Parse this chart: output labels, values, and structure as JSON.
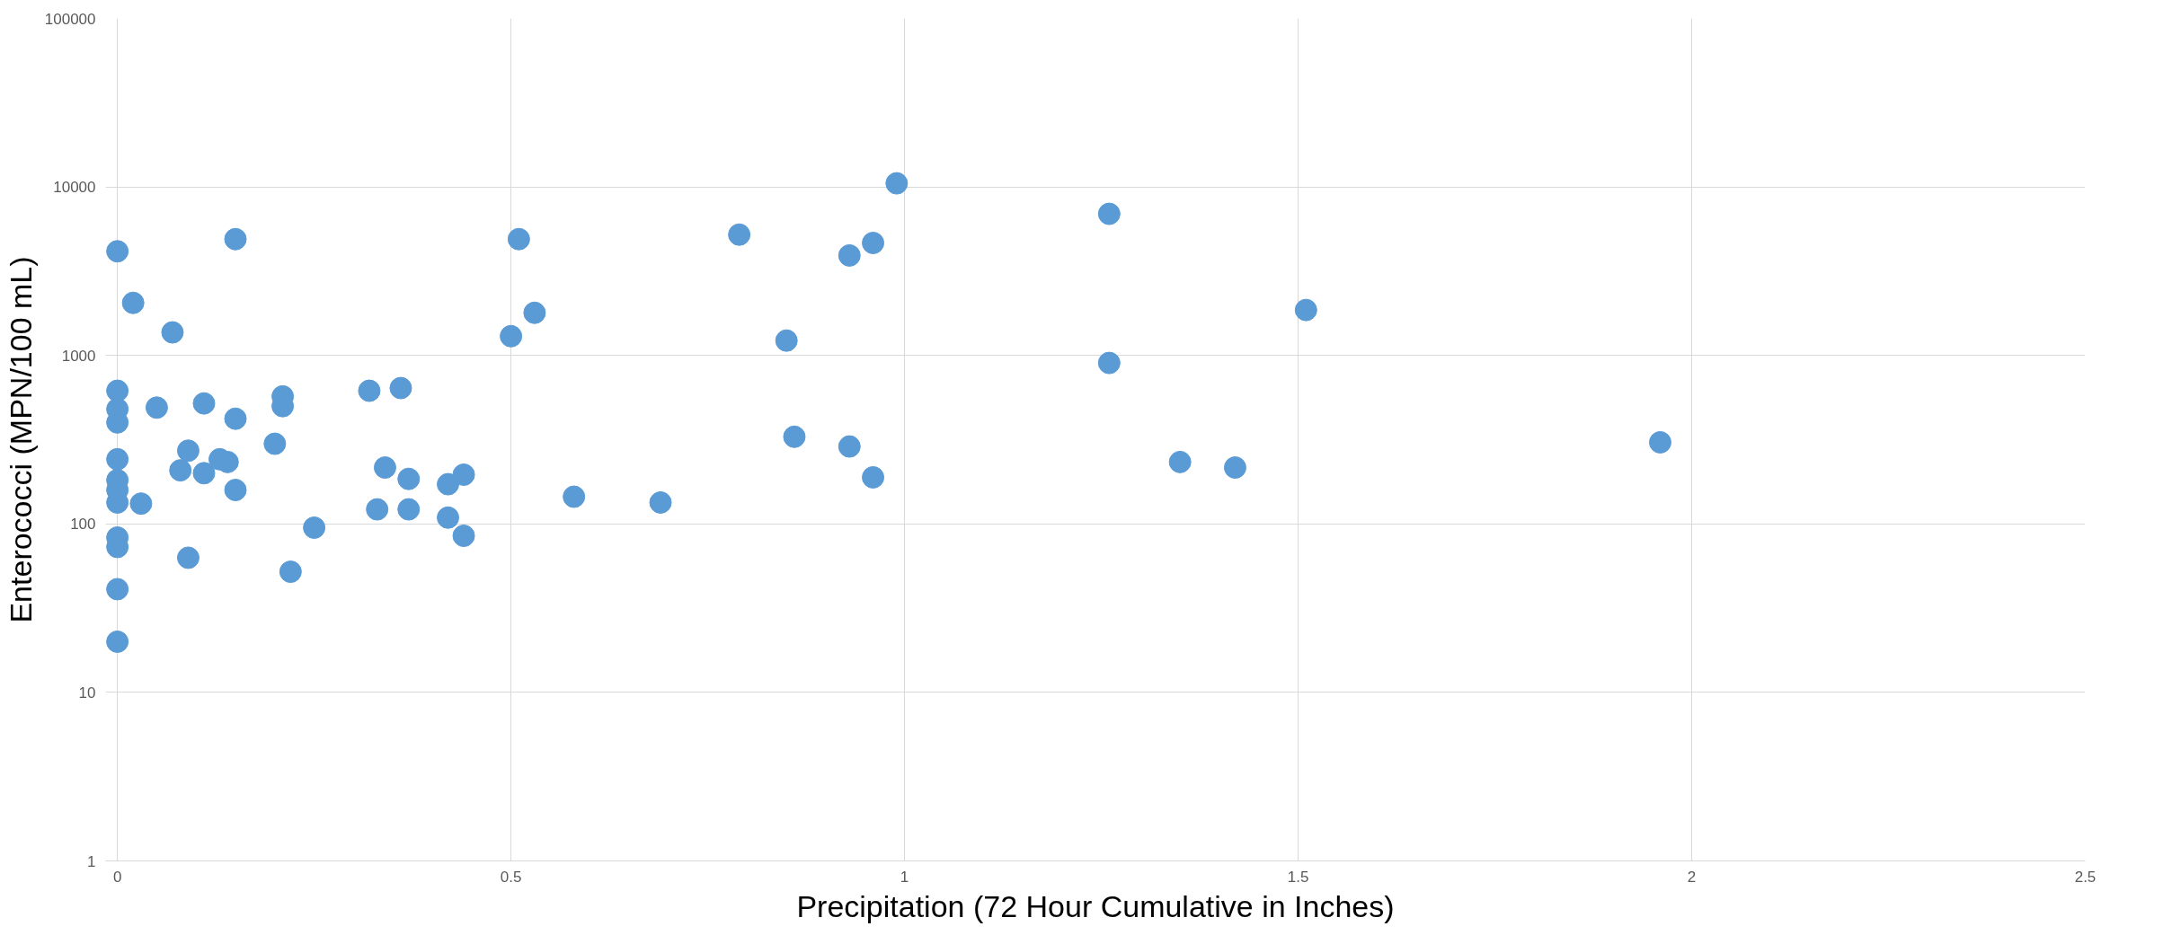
{
  "chart_data": {
    "type": "scatter",
    "xlabel": "Precipitation (72 Hour Cumulative in Inches)",
    "ylabel": "Enterococci (MPN/100 mL)",
    "log": "y",
    "grid": true,
    "marker": "circle",
    "xlim": [
      0,
      2.5
    ],
    "xticks": [
      0,
      0.5,
      1,
      1.5,
      2,
      2.5
    ],
    "ylim": [
      1,
      100000
    ],
    "yticks": [
      1,
      10,
      100,
      1000,
      10000,
      100000
    ],
    "series": [
      {
        "color": "#5b9bd5",
        "x": [
          0,
          0,
          0,
          0,
          0,
          0,
          0,
          0,
          0,
          0,
          0,
          0,
          0.02,
          0.03,
          0.05,
          0.07,
          0.08,
          0.09,
          0.09,
          0.11,
          0.11,
          0.13,
          0.14,
          0.15,
          0.15,
          0.15,
          0.2,
          0.21,
          0.21,
          0.22,
          0.25,
          0.32,
          0.33,
          0.34,
          0.36,
          0.37,
          0.37,
          0.42,
          0.42,
          0.44,
          0.44,
          0.5,
          0.51,
          0.53,
          0.58,
          0.69,
          0.79,
          0.85,
          0.86,
          0.93,
          0.93,
          0.96,
          0.96,
          0.99,
          1.26,
          1.26,
          1.35,
          1.42,
          1.51,
          1.96
        ],
        "values": [
          4150,
          617,
          480,
          400,
          242,
          182,
          159,
          134,
          83,
          73,
          41,
          20,
          2050,
          132,
          490,
          1370,
          208,
          272,
          63,
          519,
          200,
          242,
          233,
          4900,
          421,
          159,
          299,
          571,
          500,
          52,
          95,
          617,
          122,
          216,
          640,
          185,
          122,
          172,
          109,
          196,
          85,
          1300,
          4900,
          1790,
          145,
          134,
          5210,
          1225,
          329,
          3920,
          288,
          4650,
          189,
          10500,
          6920,
          902,
          233,
          216,
          1860,
          305
        ]
      }
    ]
  }
}
